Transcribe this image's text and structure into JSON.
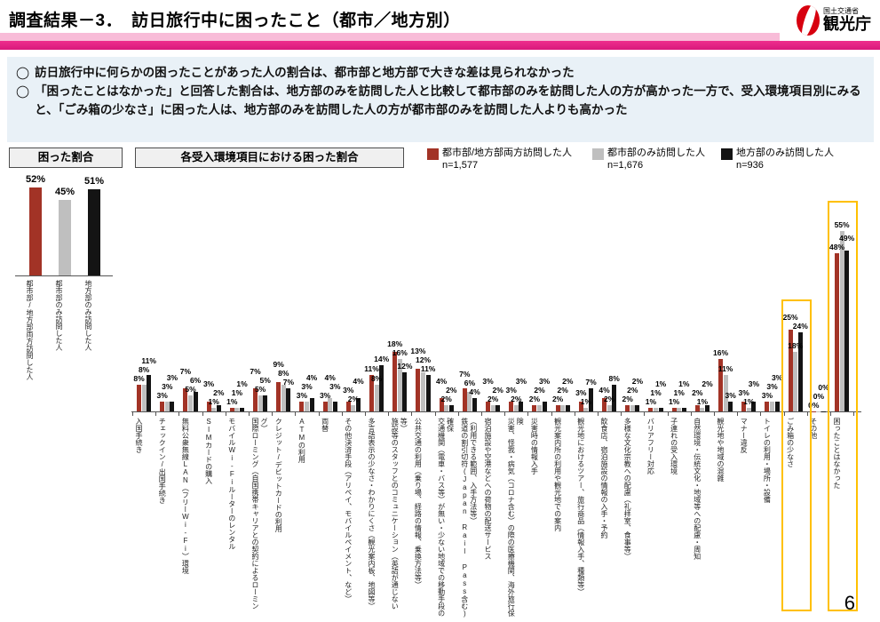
{
  "page": {
    "title": "調査結果－3．　訪日旅行中に困ったこと（都市／地方別）",
    "page_number": "6"
  },
  "logo": {
    "ministry": "国土交通省",
    "agency": "観光庁",
    "color": "#D7000F"
  },
  "bullets": [
    "訪日旅行中に何らかの困ったことがあった人の割合は、都市部と地方部で大きな差は見られなかった",
    "「困ったことはなかった」と回答した割合は、地方部のみを訪問した人と比較して都市部のみを訪問した人の方が高かった一方で、受入環境項目別にみると、「ごみ箱の少なさ」に困った人は、地方部のみを訪問した人の方が都市部のみを訪問した人よりも高かった"
  ],
  "section_labels": {
    "left": "困った割合",
    "right": "各受入環境項目における困った割合"
  },
  "legend": [
    {
      "label": "都市部/地方部両方訪問した人",
      "n": "n=1,577",
      "color": "#A23326"
    },
    {
      "label": "都市部のみ訪問した人",
      "n": "n=1,676",
      "color": "#BFBFBF"
    },
    {
      "label": "地方部のみ訪問した人",
      "n": "n=936",
      "color": "#141414"
    }
  ],
  "colors": {
    "accent_pink": "#EE2E8D",
    "light_pink": "#F8BCD8",
    "highlight_box": "#FFC000",
    "series_red": "#A23326",
    "series_gray": "#BFBFBF",
    "series_black": "#141414",
    "bullet_bg": "#E9F1F7"
  },
  "chart_data": [
    {
      "type": "bar",
      "title": "困った割合",
      "categories": [
        "都市部/地方部両方訪問した人",
        "都市部のみ訪問した人",
        "地方部のみ訪問した人"
      ],
      "values": [
        52,
        45,
        51
      ],
      "unit": "%",
      "ylim": [
        0,
        60
      ],
      "grid": false
    },
    {
      "type": "bar",
      "title": "各受入環境項目における困った割合",
      "unit": "%",
      "ylim": [
        0,
        60
      ],
      "grid": false,
      "legend_position": "top-right",
      "categories": [
        "入国手続き",
        "チェックイン/出国手続き",
        "無料公衆無線LAN（フリーWi-Fi）環境",
        "SIMカードの購入",
        "モバイルWi-Fiルーターのレンタル",
        "国際ローミング（自国携帯キャリアとの契約によるローミング）",
        "クレジット/デビットカードの利用",
        "ATMの利用",
        "両替",
        "その他決済手段（アリペイ、モバイルペイメント、など）",
        "多言語表示の少なさ・わかりにくさ（観光案内板、地図等）",
        "施設等のスタッフとのコミュニケーション（英語が通じない等）",
        "公共交通の利用（乗り場、経路の情報、乗換方法等）",
        "交通機関（電車・バス等）が無い・少ない地域での移動手段の確保",
        "鉄道の割引切符(Japan Rail Pass含む)（利用できる範囲、入手方法等）",
        "宿泊施設や空港などへの荷物の配送サービス",
        "災害、怪我・病気（コロナ含む）の際の医療機関、海外旅行保険",
        "災害時の情報入手",
        "観光案内所の利用や観光地での案内",
        "観光地におけるツアー、旅行商品（情報入手、種類等）",
        "飲食店、宿泊施設の情報の入手・予約",
        "多様な文化宗教への配慮（礼拝室、食事等）",
        "バリアフリー対応",
        "子連れの受入環境",
        "自然環境・伝統文化・地域等への配慮・周知",
        "観光地や地域の混雑",
        "マナー違反",
        "トイレの利用・場所・設備",
        "ごみ箱の少なさ",
        "その他",
        "困ったことはなかった"
      ],
      "series": [
        {
          "name": "都市部/地方部両方訪問した人",
          "color": "#A23326",
          "values": [
            8,
            3,
            7,
            3,
            1,
            7,
            9,
            3,
            3,
            3,
            11,
            18,
            13,
            4,
            7,
            3,
            3,
            2,
            2,
            3,
            4,
            2,
            1,
            1,
            2,
            16,
            3,
            3,
            25,
            0,
            48
          ]
        },
        {
          "name": "都市部のみ訪問した人",
          "color": "#BFBFBF",
          "values": [
            8,
            3,
            5,
            1,
            1,
            5,
            8,
            3,
            4,
            2,
            8,
            16,
            12,
            2,
            6,
            2,
            2,
            2,
            2,
            1,
            2,
            2,
            1,
            1,
            1,
            11,
            1,
            3,
            18,
            0,
            55
          ]
        },
        {
          "name": "地方部のみ訪問した人",
          "color": "#141414",
          "values": [
            11,
            3,
            6,
            2,
            1,
            5,
            7,
            4,
            3,
            4,
            14,
            12,
            11,
            2,
            4,
            2,
            3,
            3,
            2,
            7,
            8,
            2,
            1,
            1,
            2,
            3,
            3,
            3,
            24,
            0,
            49
          ]
        }
      ],
      "highlight_indexes": [
        28,
        30
      ],
      "highlight_color": "#FFC000"
    }
  ]
}
